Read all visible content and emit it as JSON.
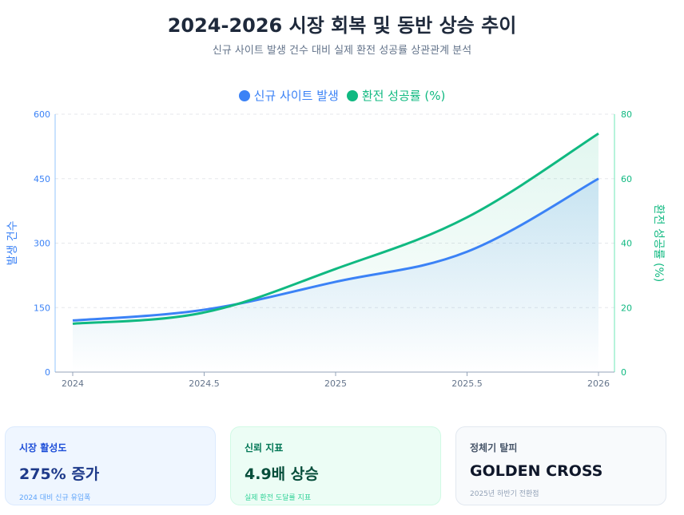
{
  "header": {
    "title": "2024-2026 시장 회복 및 동반 상승 추이",
    "subtitle": "신규 사이트 발생 건수 대비 실제 환전 성공률 상관관계 분석"
  },
  "chart_data": {
    "type": "line",
    "x": [
      2024,
      2024.5,
      2025,
      2025.5,
      2026
    ],
    "xticks": [
      "2024",
      "2024.5",
      "2025",
      "2025.5",
      "2026"
    ],
    "series": [
      {
        "name": "신규 사이트 발생",
        "axis": "left",
        "color": "#3b82f6",
        "values": [
          120,
          145,
          210,
          280,
          450
        ]
      },
      {
        "name": "환전 성공률 (%)",
        "axis": "right",
        "color": "#10b981",
        "values": [
          15,
          18.5,
          32,
          48,
          74
        ]
      }
    ],
    "ylabel_left": "발생 건수",
    "ylim_left": [
      0,
      600
    ],
    "yticks_left": [
      0,
      150,
      300,
      450,
      600
    ],
    "ylabel_right": "환전 성공률 (%)",
    "ylim_right": [
      0,
      80
    ],
    "yticks_right": [
      0,
      20,
      40,
      60,
      80
    ],
    "grid": true,
    "legend": "top"
  },
  "cards": [
    {
      "label": "시장 활성도",
      "value": "275% 증가",
      "note": "2024 대비 신규 유입폭"
    },
    {
      "label": "신뢰 지표",
      "value": "4.9배 상승",
      "note": "실제 환전 도달률 지표"
    },
    {
      "label": "정체기 탈피",
      "value": "GOLDEN CROSS",
      "note": "2025년 하반기 전환점"
    }
  ]
}
